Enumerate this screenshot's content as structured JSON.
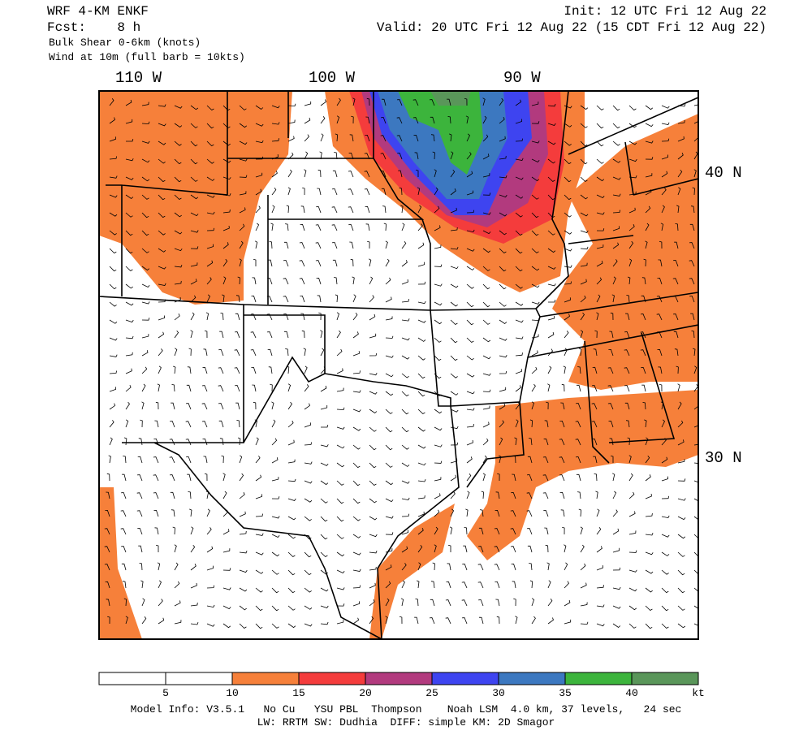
{
  "header": {
    "model": "WRF 4-KM ENKF",
    "forecast": "Fcst:    8 h",
    "field": "Bulk Shear 0-6km (knots)",
    "wind": "Wind at 10m (full barb = 10kts)",
    "init": "Init: 12 UTC Fri 12 Aug 22",
    "valid": "Valid: 20 UTC Fri 12 Aug 22 (15 CDT Fri 12 Aug 22)"
  },
  "map": {
    "lon_labels": [
      "110 W",
      "100 W",
      "90 W"
    ],
    "lat_labels": [
      "40 N",
      "30 N"
    ]
  },
  "colorbar": {
    "colors": [
      "#ffffff",
      "#ffffff",
      "#f6803a",
      "#f43c3c",
      "#b23a7e",
      "#3e44f0",
      "#3c78c0",
      "#3cb43c",
      "#5a965a"
    ],
    "ticks": [
      5,
      10,
      15,
      20,
      25,
      30,
      35,
      40
    ],
    "unit": "kt"
  },
  "footer": {
    "line1": "Model Info: V3.5.1   No Cu   YSU PBL  Thompson    Noah LSM  4.0 km, 37 levels,   24 sec",
    "line2": "LW: RRTM SW: Dudhia  DIFF: simple KM: 2D Smagor"
  }
}
